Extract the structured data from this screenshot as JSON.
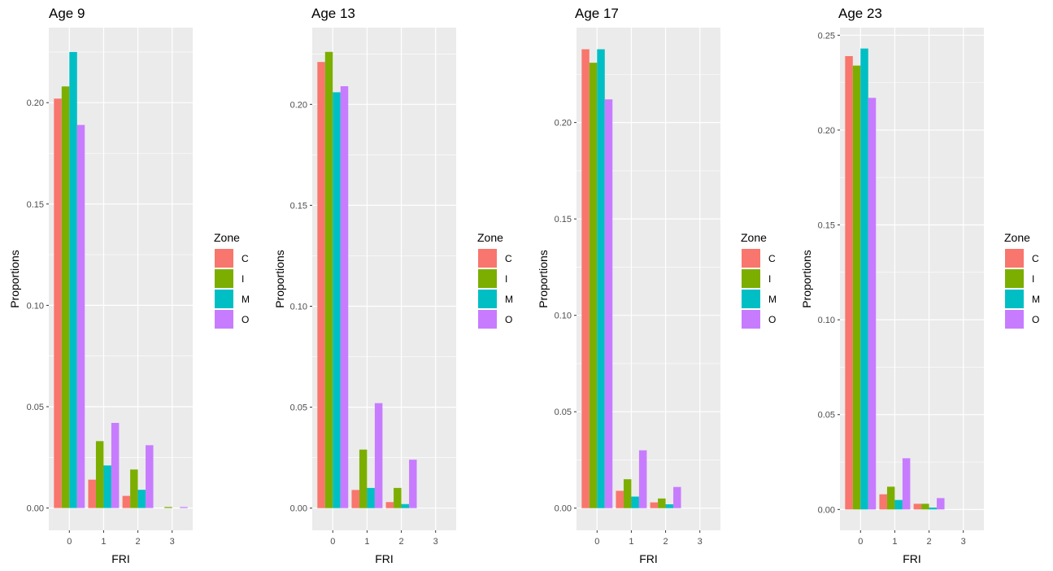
{
  "legend": {
    "title": "Zone",
    "placement": "right"
  },
  "colors": {
    "C": "#F8766D",
    "I": "#7CAE00",
    "M": "#00BFC4",
    "O": "#C77CFF",
    "panel": "#EBEBEB",
    "grid": "#FFFFFF"
  },
  "chart_data": [
    {
      "type": "bar",
      "title": "Age 9",
      "xlabel": "FRI",
      "ylabel": "Proportions",
      "categories": [
        "0",
        "1",
        "2",
        "3"
      ],
      "yticks": [
        "0.00",
        "0.05",
        "0.10",
        "0.15",
        "0.20"
      ],
      "ylim": [
        -0.011,
        0.237
      ],
      "grid": true,
      "series": [
        {
          "name": "C",
          "values": [
            0.202,
            0.014,
            0.006,
            0
          ]
        },
        {
          "name": "I",
          "values": [
            0.208,
            0.033,
            0.019,
            0.0005
          ]
        },
        {
          "name": "M",
          "values": [
            0.225,
            0.021,
            0.009,
            0
          ]
        },
        {
          "name": "O",
          "values": [
            0.189,
            0.042,
            0.031,
            0.0005
          ]
        }
      ]
    },
    {
      "type": "bar",
      "title": "Age 13",
      "xlabel": "FRI",
      "ylabel": "Proportions",
      "categories": [
        "0",
        "1",
        "2",
        "3"
      ],
      "yticks": [
        "0.00",
        "0.05",
        "0.10",
        "0.15",
        "0.20"
      ],
      "ylim": [
        -0.011,
        0.238
      ],
      "grid": true,
      "series": [
        {
          "name": "C",
          "values": [
            0.221,
            0.009,
            0.003,
            0
          ]
        },
        {
          "name": "I",
          "values": [
            0.226,
            0.029,
            0.01,
            0
          ]
        },
        {
          "name": "M",
          "values": [
            0.206,
            0.01,
            0.002,
            0
          ]
        },
        {
          "name": "O",
          "values": [
            0.209,
            0.052,
            0.024,
            0
          ]
        }
      ]
    },
    {
      "type": "bar",
      "title": "Age 17",
      "xlabel": "FRI",
      "ylabel": "Proportions",
      "categories": [
        "0",
        "1",
        "2",
        "3"
      ],
      "yticks": [
        "0.00",
        "0.05",
        "0.10",
        "0.15",
        "0.20"
      ],
      "ylim": [
        -0.0115,
        0.2492
      ],
      "grid": true,
      "series": [
        {
          "name": "C",
          "values": [
            0.238,
            0.009,
            0.003,
            0
          ]
        },
        {
          "name": "I",
          "values": [
            0.231,
            0.015,
            0.005,
            0
          ]
        },
        {
          "name": "M",
          "values": [
            0.238,
            0.006,
            0.002,
            0
          ]
        },
        {
          "name": "O",
          "values": [
            0.212,
            0.03,
            0.011,
            0
          ]
        }
      ]
    },
    {
      "type": "bar",
      "title": "Age 23",
      "xlabel": "FRI",
      "ylabel": "Proportions",
      "categories": [
        "0",
        "1",
        "2",
        "3"
      ],
      "yticks": [
        "0.00",
        "0.05",
        "0.10",
        "0.15",
        "0.20",
        "0.25"
      ],
      "ylim": [
        -0.011,
        0.254
      ],
      "grid": true,
      "series": [
        {
          "name": "C",
          "values": [
            0.239,
            0.008,
            0.003,
            0
          ]
        },
        {
          "name": "I",
          "values": [
            0.234,
            0.012,
            0.003,
            0
          ]
        },
        {
          "name": "M",
          "values": [
            0.243,
            0.005,
            0.001,
            0
          ]
        },
        {
          "name": "O",
          "values": [
            0.217,
            0.027,
            0.006,
            0
          ]
        }
      ]
    }
  ]
}
